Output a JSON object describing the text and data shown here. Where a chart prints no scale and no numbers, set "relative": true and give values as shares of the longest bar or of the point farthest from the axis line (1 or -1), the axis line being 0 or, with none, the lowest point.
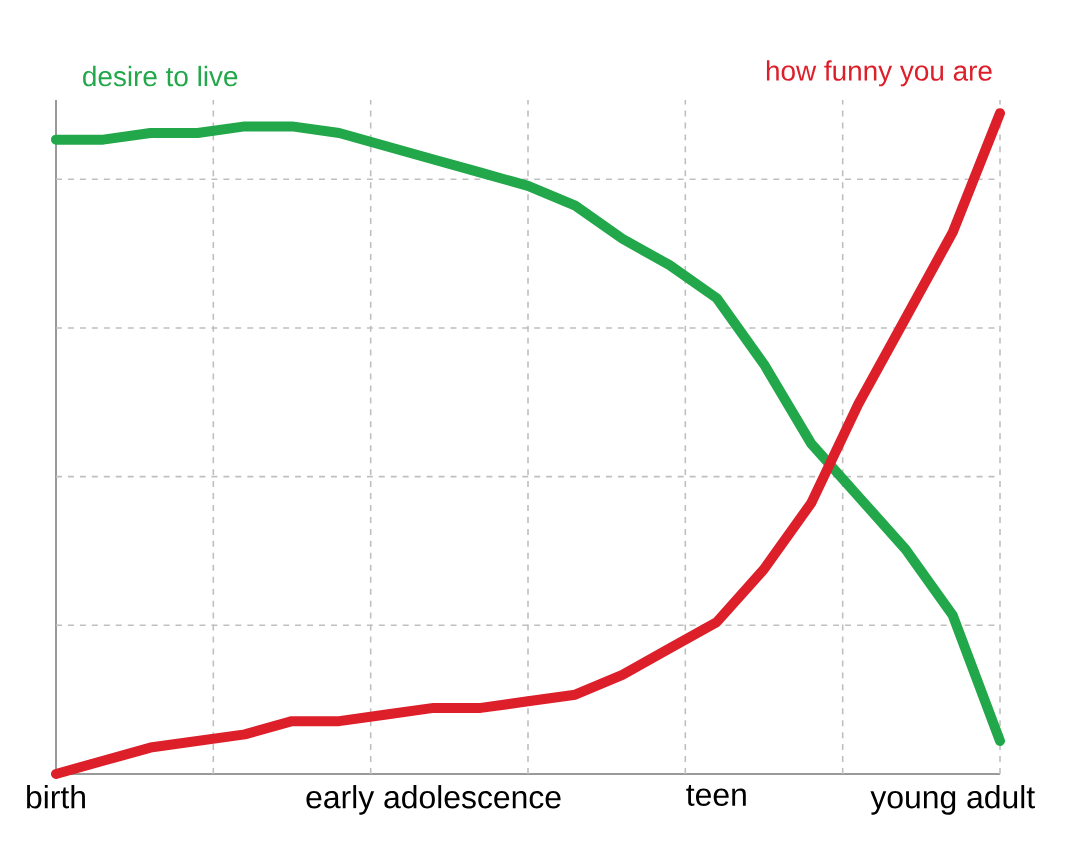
{
  "chart_data": {
    "type": "line",
    "relative": true,
    "grid": true,
    "legend": false,
    "categories": [
      "birth",
      null,
      null,
      null,
      null,
      null,
      null,
      null,
      "early adolescence",
      null,
      null,
      null,
      null,
      null,
      "teen",
      null,
      null,
      null,
      null,
      "young adult",
      null
    ],
    "series": [
      {
        "name": "desire to live",
        "color": "#22a84a",
        "values": [
          0.96,
          0.96,
          0.97,
          0.97,
          0.98,
          0.98,
          0.97,
          0.95,
          0.93,
          0.91,
          0.89,
          0.86,
          0.81,
          0.77,
          0.72,
          0.62,
          0.5,
          0.42,
          0.34,
          0.24,
          0.05
        ]
      },
      {
        "name": "how funny you are",
        "color": "#dd1f2a",
        "values": [
          0,
          0.02,
          0.04,
          0.05,
          0.06,
          0.08,
          0.08,
          0.09,
          0.1,
          0.1,
          0.11,
          0.12,
          0.15,
          0.19,
          0.23,
          0.31,
          0.41,
          0.56,
          0.69,
          0.82,
          1
        ]
      }
    ]
  }
}
